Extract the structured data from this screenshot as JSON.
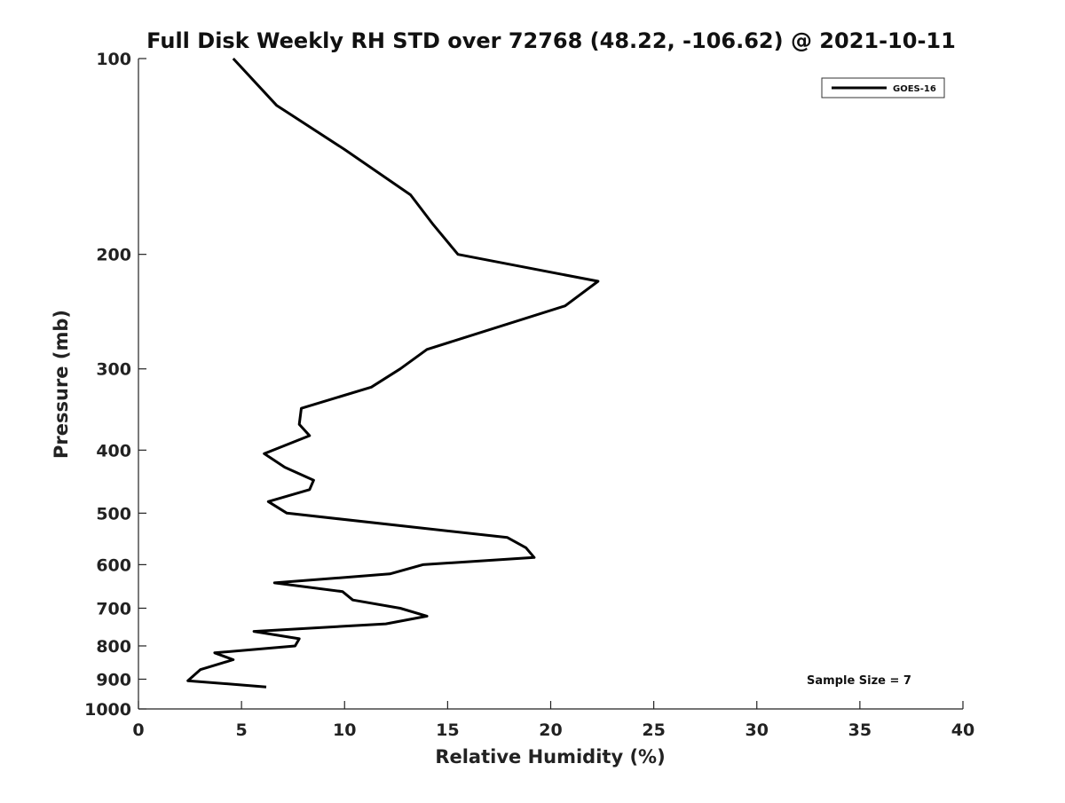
{
  "chart_data": {
    "type": "line",
    "title": "Full Disk Weekly RH STD over 72768 (48.22, -106.62) @ 2021-10-11",
    "xlabel": "Relative Humidity (%)",
    "ylabel": "Pressure (mb)",
    "xlim": [
      0,
      40
    ],
    "ylim": [
      100,
      1000
    ],
    "yscale": "log",
    "y_inverted": true,
    "xticks": [
      0,
      5,
      10,
      15,
      20,
      25,
      30,
      35,
      40
    ],
    "yticks": [
      100,
      200,
      300,
      400,
      500,
      600,
      700,
      800,
      900,
      1000
    ],
    "grid": false,
    "legend": {
      "placement": "top-right",
      "entries": [
        "GOES-16"
      ]
    },
    "annotation": "Sample Size = 7",
    "line_color": "#000000",
    "series": [
      {
        "name": "GOES-16",
        "points": [
          {
            "x": 4.6,
            "y": 100
          },
          {
            "x": 6.7,
            "y": 118
          },
          {
            "x": 10.0,
            "y": 138
          },
          {
            "x": 13.2,
            "y": 162
          },
          {
            "x": 14.3,
            "y": 180
          },
          {
            "x": 15.5,
            "y": 200
          },
          {
            "x": 22.3,
            "y": 220
          },
          {
            "x": 20.7,
            "y": 240
          },
          {
            "x": 14.0,
            "y": 280
          },
          {
            "x": 12.7,
            "y": 300
          },
          {
            "x": 11.3,
            "y": 320
          },
          {
            "x": 7.9,
            "y": 345
          },
          {
            "x": 7.8,
            "y": 365
          },
          {
            "x": 8.3,
            "y": 380
          },
          {
            "x": 6.1,
            "y": 405
          },
          {
            "x": 7.1,
            "y": 425
          },
          {
            "x": 8.5,
            "y": 445
          },
          {
            "x": 8.3,
            "y": 460
          },
          {
            "x": 6.3,
            "y": 480
          },
          {
            "x": 7.2,
            "y": 500
          },
          {
            "x": 17.9,
            "y": 545
          },
          {
            "x": 18.8,
            "y": 565
          },
          {
            "x": 19.2,
            "y": 585
          },
          {
            "x": 13.8,
            "y": 600
          },
          {
            "x": 12.2,
            "y": 620
          },
          {
            "x": 6.6,
            "y": 640
          },
          {
            "x": 9.9,
            "y": 660
          },
          {
            "x": 10.4,
            "y": 680
          },
          {
            "x": 12.7,
            "y": 700
          },
          {
            "x": 14.0,
            "y": 720
          },
          {
            "x": 12.0,
            "y": 740
          },
          {
            "x": 5.6,
            "y": 760
          },
          {
            "x": 7.8,
            "y": 780
          },
          {
            "x": 7.6,
            "y": 800
          },
          {
            "x": 3.7,
            "y": 820
          },
          {
            "x": 4.6,
            "y": 840
          },
          {
            "x": 3.0,
            "y": 870
          },
          {
            "x": 2.4,
            "y": 905
          },
          {
            "x": 6.2,
            "y": 925
          }
        ]
      }
    ]
  }
}
